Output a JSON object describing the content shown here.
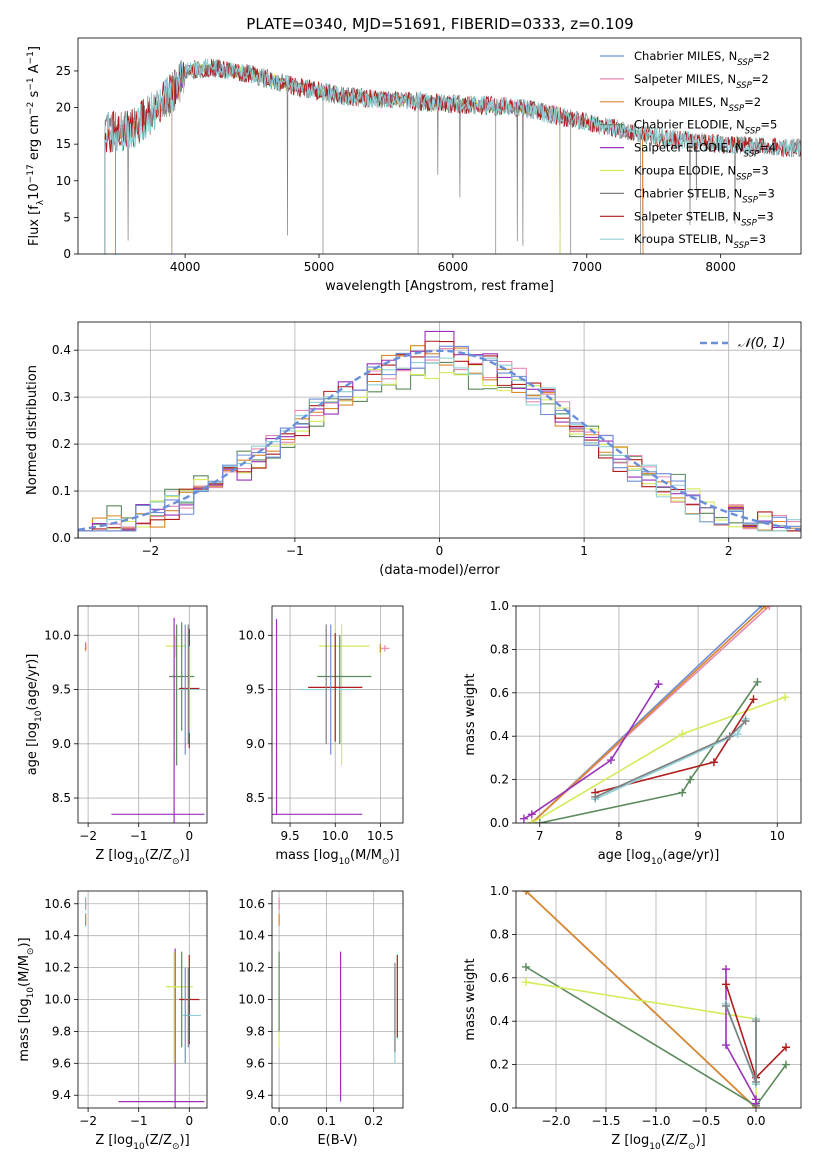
{
  "figure": {
    "title": "PLATE=0340, MJD=51691, FIBERID=0333, z=0.109"
  },
  "colors": {
    "chabrier_miles": "#6f8fd8",
    "salpeter_miles": "#e88ab0",
    "kroupa_miles": "#d98a2a",
    "chabrier_elodie": "#5c8a5c",
    "salpeter_elodie": "#9a32b8",
    "kroupa_elodie": "#d4ec5a",
    "chabrier_stelib": "#7f7f7f",
    "salpeter_stelib": "#b01c1c",
    "kroupa_stelib": "#8fd0d8",
    "normal": "#6a8fd8"
  },
  "chart_data": [
    {
      "id": "spectrum",
      "type": "line",
      "xlabel": "wavelength [Angstrom, rest frame]",
      "ylabel_parts": [
        "Flux [f",
        "λ",
        "10",
        "−17",
        " erg cm",
        "−2",
        " s",
        "−1",
        " A",
        "−1",
        "]"
      ],
      "xlim": [
        3200,
        8600
      ],
      "ylim": [
        0,
        29.5
      ],
      "xticks": [
        4000,
        5000,
        6000,
        7000,
        8000
      ],
      "yticks": [
        0,
        5,
        10,
        15,
        20,
        25
      ],
      "grid": false,
      "legend_position": "top-right",
      "legend": [
        {
          "name": "Chabrier MILES, N",
          "sub": "SSP",
          "suffix": "=2",
          "color_key": "chabrier_miles"
        },
        {
          "name": "Salpeter MILES, N",
          "sub": "SSP",
          "suffix": "=2",
          "color_key": "salpeter_miles"
        },
        {
          "name": "Kroupa MILES, N",
          "sub": "SSP",
          "suffix": "=2",
          "color_key": "kroupa_miles"
        },
        {
          "name": "Chabrier ELODIE, N",
          "sub": "SSP",
          "suffix": "=5",
          "color_key": "chabrier_elodie"
        },
        {
          "name": "Salpeter ELODIE, N",
          "sub": "SSP",
          "suffix": "=4",
          "color_key": "salpeter_elodie"
        },
        {
          "name": "Kroupa ELODIE, N",
          "sub": "SSP",
          "suffix": "=3",
          "color_key": "kroupa_elodie"
        },
        {
          "name": "Chabrier STELIB, N",
          "sub": "SSP",
          "suffix": "=3",
          "color_key": "chabrier_stelib"
        },
        {
          "name": "Salpeter STELIB, N",
          "sub": "SSP",
          "suffix": "=3",
          "color_key": "salpeter_stelib"
        },
        {
          "name": "Kroupa STELIB, N",
          "sub": "SSP",
          "suffix": "=3",
          "color_key": "kroupa_stelib"
        }
      ],
      "continuum": [
        [
          3400,
          16.5
        ],
        [
          3600,
          17
        ],
        [
          3800,
          20
        ],
        [
          3950,
          23
        ],
        [
          4000,
          25
        ],
        [
          4200,
          25.5
        ],
        [
          4500,
          24.5
        ],
        [
          4800,
          23
        ],
        [
          5200,
          21.5
        ],
        [
          5600,
          21
        ],
        [
          6000,
          20.5
        ],
        [
          6500,
          20
        ],
        [
          7000,
          18
        ],
        [
          7500,
          16
        ],
        [
          8000,
          15
        ],
        [
          8500,
          14.5
        ]
      ],
      "series_ranges": [
        {
          "color_key": "chabrier_miles",
          "start": 3480,
          "end": 7420
        },
        {
          "color_key": "salpeter_miles",
          "start": 3480,
          "end": 7420
        },
        {
          "color_key": "kroupa_miles",
          "start": 3480,
          "end": 7420
        },
        {
          "color_key": "chabrier_elodie",
          "start": 3900,
          "end": 6800
        },
        {
          "color_key": "salpeter_elodie",
          "start": 3900,
          "end": 6800
        },
        {
          "color_key": "kroupa_elodie",
          "start": 3900,
          "end": 6800
        },
        {
          "color_key": "chabrier_stelib",
          "start": 3400,
          "end": 8600
        },
        {
          "color_key": "salpeter_stelib",
          "start": 3400,
          "end": 8600
        },
        {
          "color_key": "kroupa_stelib",
          "start": 3400,
          "end": 8600
        }
      ]
    },
    {
      "id": "residuals",
      "type": "line",
      "xlabel": "(data-model)/error",
      "ylabel": "Normed distribution",
      "xlim": [
        -2.5,
        2.5
      ],
      "ylim": [
        0,
        0.46
      ],
      "xticks": [
        -2,
        -1,
        0,
        1,
        2
      ],
      "yticks": [
        0.0,
        0.1,
        0.2,
        0.3,
        0.4
      ],
      "grid": true,
      "legend_position": "top-right",
      "legend": [
        {
          "name": "𝒩(0, 1)",
          "color_key": "normal"
        }
      ],
      "normal_mean": 0,
      "normal_sigma": 1
    },
    {
      "id": "age-vs-Z",
      "type": "scatter",
      "xlabel_parts": [
        "Z [log",
        "10",
        "(Z/Z",
        "⊙",
        ")]"
      ],
      "ylabel_parts": [
        "age  [log",
        "10",
        "(age/yr)]"
      ],
      "xlim": [
        -2.2,
        0.35
      ],
      "ylim": [
        8.27,
        10.27
      ],
      "xticks": [
        -2,
        -1,
        0
      ],
      "yticks": [
        8.5,
        9.0,
        9.5,
        10.0
      ],
      "grid": true,
      "crosses": [
        {
          "color_key": "salpeter_miles",
          "x": -2.05,
          "y": 9.88,
          "dx": 0.02,
          "dy": 0.03
        },
        {
          "color_key": "kroupa_miles",
          "x": -2.05,
          "y": 9.9,
          "dx": 0.0,
          "dy": 0.02
        },
        {
          "color_key": "kroupa_elodie",
          "x": -0.27,
          "y": 9.9,
          "dx": 0.2,
          "dy": 0.1
        },
        {
          "color_key": "kroupa_elodie",
          "x": -0.3,
          "y": 9.4,
          "dx": 0.0,
          "dy": 0.6
        },
        {
          "color_key": "chabrier_elodie",
          "x": -0.15,
          "y": 9.62,
          "dx": 0.25,
          "dy": 0.5
        },
        {
          "color_key": "chabrier_elodie",
          "x": -0.25,
          "y": 9.45,
          "dx": 0.0,
          "dy": 0.65
        },
        {
          "color_key": "salpeter_elodie",
          "x": -0.62,
          "y": 8.35,
          "dx": 0.92,
          "dy": 0.0
        },
        {
          "color_key": "salpeter_elodie",
          "x": -0.3,
          "y": 9.2,
          "dx": 0.0,
          "dy": 0.96
        },
        {
          "color_key": "salpeter_stelib",
          "x": 0.0,
          "y": 9.51,
          "dx": 0.2,
          "dy": 0.55
        },
        {
          "color_key": "kroupa_stelib",
          "x": 0.0,
          "y": 9.5,
          "dx": 0.2,
          "dy": 0.4
        },
        {
          "color_key": "chabrier_miles",
          "x": -0.08,
          "y": 9.5,
          "dx": 0.0,
          "dy": 0.6
        },
        {
          "color_key": "chabrier_stelib",
          "x": -0.02,
          "y": 9.55,
          "dx": 0.0,
          "dy": 0.55
        }
      ]
    },
    {
      "id": "age-vs-mass",
      "type": "scatter",
      "xlabel_parts": [
        "mass [log",
        "10",
        "(M/M",
        "⊙",
        ")]"
      ],
      "xlim": [
        9.3,
        10.75
      ],
      "ylim": [
        8.27,
        10.27
      ],
      "xticks": [
        9.5,
        10.0,
        10.5
      ],
      "yticks": [
        8.5,
        9.0,
        9.5,
        10.0
      ],
      "grid": true,
      "crosses": [
        {
          "color_key": "salpeter_miles",
          "x": 10.55,
          "y": 9.88,
          "dx": 0.05,
          "dy": 0.03
        },
        {
          "color_key": "kroupa_miles",
          "x": 10.5,
          "y": 9.88,
          "dx": 0.0,
          "dy": 0.04
        },
        {
          "color_key": "salpeter_elodie",
          "x": 9.8,
          "y": 8.35,
          "dx": 0.5,
          "dy": 0.0
        },
        {
          "color_key": "salpeter_elodie",
          "x": 9.35,
          "y": 9.25,
          "dx": 0.0,
          "dy": 0.9
        },
        {
          "color_key": "kroupa_elodie",
          "x": 10.1,
          "y": 9.9,
          "dx": 0.28,
          "dy": 0.0
        },
        {
          "color_key": "kroupa_elodie",
          "x": 10.07,
          "y": 9.45,
          "dx": 0.0,
          "dy": 0.65
        },
        {
          "color_key": "chabrier_elodie",
          "x": 10.1,
          "y": 9.62,
          "dx": 0.3,
          "dy": 0.0
        },
        {
          "color_key": "chabrier_elodie",
          "x": 10.05,
          "y": 9.5,
          "dx": 0.0,
          "dy": 0.5
        },
        {
          "color_key": "kroupa_stelib",
          "x": 9.9,
          "y": 9.5,
          "dx": 0.3,
          "dy": 0.0
        },
        {
          "color_key": "salpeter_stelib",
          "x": 10.0,
          "y": 9.52,
          "dx": 0.3,
          "dy": 0.5
        },
        {
          "color_key": "chabrier_miles",
          "x": 9.95,
          "y": 9.5,
          "dx": 0.0,
          "dy": 0.6
        },
        {
          "color_key": "chabrier_stelib",
          "x": 9.9,
          "y": 9.55,
          "dx": 0.0,
          "dy": 0.55
        }
      ]
    },
    {
      "id": "weight-vs-age",
      "type": "line",
      "xlabel_parts": [
        "age  [log",
        "10",
        "(age/yr)]"
      ],
      "ylabel": "mass weight",
      "xlim": [
        6.7,
        10.3
      ],
      "ylim": [
        0,
        1.0
      ],
      "xticks": [
        7,
        8,
        9,
        10
      ],
      "yticks": [
        0.0,
        0.2,
        0.4,
        0.6,
        0.8,
        1.0
      ],
      "grid": true,
      "series": [
        {
          "color_key": "chabrier_miles",
          "points": [
            [
              6.9,
              0.0
            ],
            [
              9.8,
              1.0
            ]
          ]
        },
        {
          "color_key": "salpeter_miles",
          "points": [
            [
              6.9,
              0.0
            ],
            [
              9.9,
              1.0
            ]
          ]
        },
        {
          "color_key": "kroupa_miles",
          "points": [
            [
              6.9,
              0.0
            ],
            [
              9.85,
              1.0
            ]
          ]
        },
        {
          "color_key": "salpeter_elodie",
          "points": [
            [
              6.8,
              0.02
            ],
            [
              6.9,
              0.04
            ],
            [
              7.9,
              0.29
            ],
            [
              8.5,
              0.64
            ]
          ]
        },
        {
          "color_key": "kroupa_elodie",
          "points": [
            [
              6.9,
              0.0
            ],
            [
              8.8,
              0.41
            ],
            [
              10.1,
              0.58
            ]
          ]
        },
        {
          "color_key": "chabrier_elodie",
          "points": [
            [
              7.0,
              0.0
            ],
            [
              8.8,
              0.14
            ],
            [
              8.9,
              0.2
            ],
            [
              9.75,
              0.65
            ]
          ]
        },
        {
          "color_key": "salpeter_stelib",
          "points": [
            [
              7.7,
              0.14
            ],
            [
              9.2,
              0.28
            ],
            [
              9.7,
              0.57
            ]
          ]
        },
        {
          "color_key": "kroupa_stelib",
          "points": [
            [
              7.7,
              0.11
            ],
            [
              9.5,
              0.41
            ],
            [
              9.6,
              0.48
            ]
          ]
        },
        {
          "color_key": "chabrier_stelib",
          "points": [
            [
              7.7,
              0.12
            ],
            [
              9.4,
              0.4
            ],
            [
              9.6,
              0.47
            ]
          ]
        }
      ]
    },
    {
      "id": "mass-vs-Z",
      "type": "scatter",
      "xlabel_parts": [
        "Z [log",
        "10",
        "(Z/Z",
        "⊙",
        ")]"
      ],
      "ylabel_parts": [
        "mass [log",
        "10",
        "(M/M",
        "⊙",
        ")]"
      ],
      "xlim": [
        -2.2,
        0.35
      ],
      "ylim": [
        9.32,
        10.68
      ],
      "xticks": [
        -2,
        -1,
        0
      ],
      "yticks": [
        9.4,
        9.6,
        9.8,
        10.0,
        10.2,
        10.4,
        10.6
      ],
      "grid": true,
      "crosses": [
        {
          "color_key": "salpeter_miles",
          "x": -2.05,
          "y": 10.6,
          "dx": 0.0,
          "dy": 0.04
        },
        {
          "color_key": "kroupa_miles",
          "x": -2.05,
          "y": 10.5,
          "dx": 0.0,
          "dy": 0.04
        },
        {
          "color_key": "salpeter_elodie",
          "x": -0.55,
          "y": 9.36,
          "dx": 0.85,
          "dy": 0.0
        },
        {
          "color_key": "salpeter_elodie",
          "x": -0.28,
          "y": 9.8,
          "dx": 0.0,
          "dy": 0.52
        },
        {
          "color_key": "kroupa_elodie",
          "x": -0.2,
          "y": 10.08,
          "dx": 0.27,
          "dy": 0.0
        },
        {
          "color_key": "kroupa_elodie",
          "x": -0.3,
          "y": 9.95,
          "dx": 0.0,
          "dy": 0.35
        },
        {
          "color_key": "chabrier_elodie",
          "x": -0.15,
          "y": 10.0,
          "dx": 0.0,
          "dy": 0.3
        },
        {
          "color_key": "salpeter_stelib",
          "x": 0.0,
          "y": 10.0,
          "dx": 0.2,
          "dy": 0.28
        },
        {
          "color_key": "kroupa_stelib",
          "x": 0.05,
          "y": 9.9,
          "dx": 0.18,
          "dy": 0.0
        },
        {
          "color_key": "chabrier_miles",
          "x": -0.08,
          "y": 9.9,
          "dx": 0.0,
          "dy": 0.3
        },
        {
          "color_key": "chabrier_stelib",
          "x": -0.02,
          "y": 9.95,
          "dx": 0.0,
          "dy": 0.25
        }
      ]
    },
    {
      "id": "mass-vs-EBV",
      "type": "scatter",
      "xlabel": "E(B-V)",
      "xlim": [
        -0.015,
        0.262
      ],
      "ylim": [
        9.32,
        10.68
      ],
      "xticks": [
        0.0,
        0.1,
        0.2
      ],
      "yticks": [
        9.4,
        9.6,
        9.8,
        10.0,
        10.2,
        10.4,
        10.6
      ],
      "grid": true,
      "crosses": [
        {
          "color_key": "salpeter_miles",
          "x": 0.0,
          "y": 10.6,
          "dx": 0.0,
          "dy": 0.04
        },
        {
          "color_key": "kroupa_miles",
          "x": 0.0,
          "y": 10.5,
          "dx": 0.0,
          "dy": 0.04
        },
        {
          "color_key": "kroupa_elodie",
          "x": 0.0,
          "y": 10.0,
          "dx": 0.0,
          "dy": 0.3
        },
        {
          "color_key": "chabrier_elodie",
          "x": 0.0,
          "y": 10.05,
          "dx": 0.0,
          "dy": 0.25
        },
        {
          "color_key": "salpeter_elodie",
          "x": 0.13,
          "y": 9.83,
          "dx": 0.0,
          "dy": 0.47
        },
        {
          "color_key": "salpeter_stelib",
          "x": 0.25,
          "y": 10.02,
          "dx": 0.0,
          "dy": 0.26
        },
        {
          "color_key": "kroupa_stelib",
          "x": 0.245,
          "y": 9.9,
          "dx": 0.0,
          "dy": 0.3
        },
        {
          "color_key": "chabrier_stelib",
          "x": 0.245,
          "y": 9.95,
          "dx": 0.0,
          "dy": 0.28
        }
      ]
    },
    {
      "id": "weight-vs-Z",
      "type": "line",
      "xlabel_parts": [
        "Z [log",
        "10",
        "(Z/Z",
        "⊙",
        ")]"
      ],
      "ylabel": "mass weight",
      "xlim": [
        -2.4,
        0.45
      ],
      "ylim": [
        0,
        1.0
      ],
      "xticks": [
        -2.0,
        -1.5,
        -1.0,
        -0.5,
        0.0
      ],
      "ytick_labels": [
        "0.0",
        "0.2",
        "0.4",
        "0.6",
        "0.8",
        "1.0"
      ],
      "xtick_labels": [
        "−2.0",
        "−1.5",
        "−1.0",
        "−0.5",
        "0.0"
      ],
      "yticks": [
        0.0,
        0.2,
        0.4,
        0.6,
        0.8,
        1.0
      ],
      "grid": true,
      "series": [
        {
          "color_key": "chabrier_miles",
          "points": [
            [
              -2.3,
              1.0
            ],
            [
              0.0,
              0.0
            ]
          ]
        },
        {
          "color_key": "salpeter_miles",
          "points": [
            [
              -2.3,
              1.0
            ],
            [
              0.0,
              0.0
            ]
          ]
        },
        {
          "color_key": "kroupa_miles",
          "points": [
            [
              -2.3,
              1.0
            ],
            [
              0.0,
              0.0
            ]
          ]
        },
        {
          "color_key": "chabrier_elodie",
          "points": [
            [
              -2.3,
              0.65
            ],
            [
              0.0,
              0.01
            ],
            [
              0.3,
              0.2
            ]
          ]
        },
        {
          "color_key": "kroupa_elodie",
          "points": [
            [
              -2.3,
              0.58
            ],
            [
              0.0,
              0.41
            ],
            [
              0.0,
              0.0
            ]
          ]
        },
        {
          "color_key": "salpeter_elodie",
          "points": [
            [
              -0.3,
              0.64
            ],
            [
              -0.3,
              0.29
            ],
            [
              0.0,
              0.04
            ],
            [
              0.0,
              0.02
            ]
          ]
        },
        {
          "color_key": "salpeter_stelib",
          "points": [
            [
              -0.3,
              0.57
            ],
            [
              0.0,
              0.14
            ],
            [
              0.3,
              0.28
            ]
          ]
        },
        {
          "color_key": "kroupa_stelib",
          "points": [
            [
              -0.3,
              0.48
            ],
            [
              0.0,
              0.11
            ],
            [
              0.0,
              0.41
            ]
          ]
        },
        {
          "color_key": "chabrier_stelib",
          "points": [
            [
              -0.3,
              0.47
            ],
            [
              0.0,
              0.12
            ],
            [
              0.0,
              0.4
            ]
          ]
        }
      ]
    }
  ]
}
